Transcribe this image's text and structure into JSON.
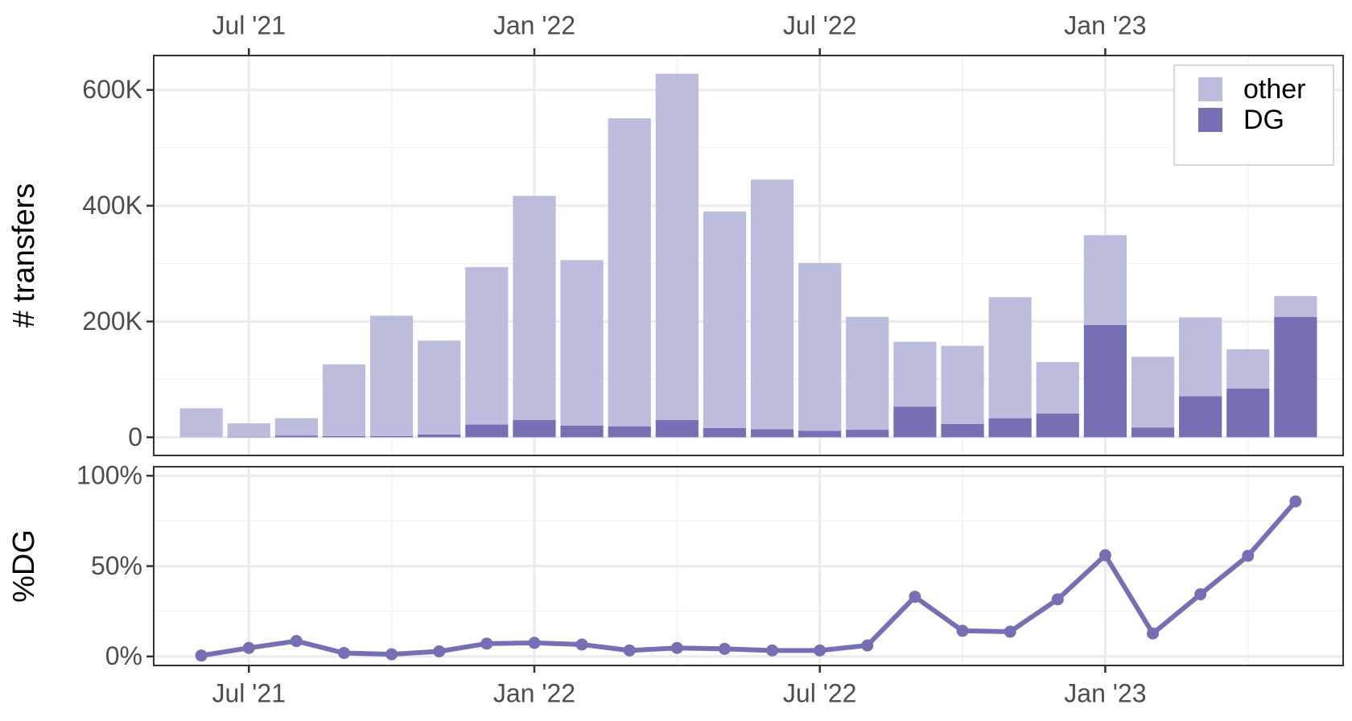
{
  "chart_data": [
    {
      "type": "stacked-bar",
      "ylabel": "# transfers",
      "x": [
        "2021-06",
        "2021-07",
        "2021-08",
        "2021-09",
        "2021-10",
        "2021-11",
        "2021-12",
        "2022-01",
        "2022-02",
        "2022-03",
        "2022-04",
        "2022-05",
        "2022-06",
        "2022-07",
        "2022-08",
        "2022-09",
        "2022-10",
        "2022-11",
        "2022-12",
        "2023-01",
        "2023-02",
        "2023-03",
        "2023-04",
        "2023-05"
      ],
      "series": [
        {
          "name": "DG",
          "color": "#7570b3",
          "values": [
            300,
            1000,
            3000,
            2000,
            2000,
            5000,
            22000,
            30000,
            20000,
            19000,
            30000,
            16000,
            14000,
            11000,
            13000,
            53000,
            23000,
            33000,
            41000,
            194000,
            17000,
            71000,
            84000,
            208000
          ]
        },
        {
          "name": "other",
          "color": "#bcbddc",
          "values": [
            49700,
            23000,
            30000,
            124000,
            208000,
            162000,
            272000,
            387000,
            286000,
            532000,
            598000,
            374000,
            431000,
            290000,
            195000,
            112000,
            135000,
            209000,
            89000,
            155000,
            122000,
            136000,
            68000,
            36000
          ]
        }
      ],
      "xlim": [
        "2021-05",
        "2023-06"
      ],
      "xticks": [
        {
          "value": "2021-07",
          "label": "Jul '21"
        },
        {
          "value": "2022-01",
          "label": "Jan '22"
        },
        {
          "value": "2022-07",
          "label": "Jul '22"
        },
        {
          "value": "2023-01",
          "label": "Jan '23"
        }
      ],
      "ylim": [
        -31400,
        659400
      ],
      "yticks": [
        0,
        {
          "value": 200000,
          "label": "200K"
        },
        {
          "value": 400000,
          "label": "400K"
        },
        {
          "value": 600000,
          "label": "600K"
        }
      ],
      "grid": true,
      "legend": "top-right"
    },
    {
      "type": "line",
      "ylabel": "%DG",
      "x": [
        "2021-06",
        "2021-07",
        "2021-08",
        "2021-09",
        "2021-10",
        "2021-11",
        "2021-12",
        "2022-01",
        "2022-02",
        "2022-03",
        "2022-04",
        "2022-05",
        "2022-06",
        "2022-07",
        "2022-08",
        "2022-09",
        "2022-10",
        "2022-11",
        "2022-12",
        "2023-01",
        "2023-02",
        "2023-03",
        "2023-04",
        "2023-05"
      ],
      "color": "#7570b3",
      "values": [
        0.5,
        4.7,
        8.5,
        1.9,
        1.2,
        2.8,
        7.1,
        7.5,
        6.6,
        3.3,
        4.7,
        4.2,
        3.3,
        3.3,
        6.1,
        33,
        14.2,
        13.7,
        31.6,
        56,
        12.7,
        34.4,
        55.7,
        85.8
      ],
      "xlim": [
        "2021-05",
        "2023-06"
      ],
      "xticks": [
        {
          "value": "2021-07",
          "label": "Jul '21"
        },
        {
          "value": "2022-01",
          "label": "Jan '22"
        },
        {
          "value": "2022-07",
          "label": "Jul '22"
        },
        {
          "value": "2023-01",
          "label": "Jan '23"
        }
      ],
      "ylim": [
        -5,
        105
      ],
      "yticks": [
        {
          "value": 0,
          "label": "0%"
        },
        {
          "value": 50,
          "label": "50%"
        },
        {
          "value": 100,
          "label": "100%"
        }
      ],
      "grid": true
    }
  ]
}
